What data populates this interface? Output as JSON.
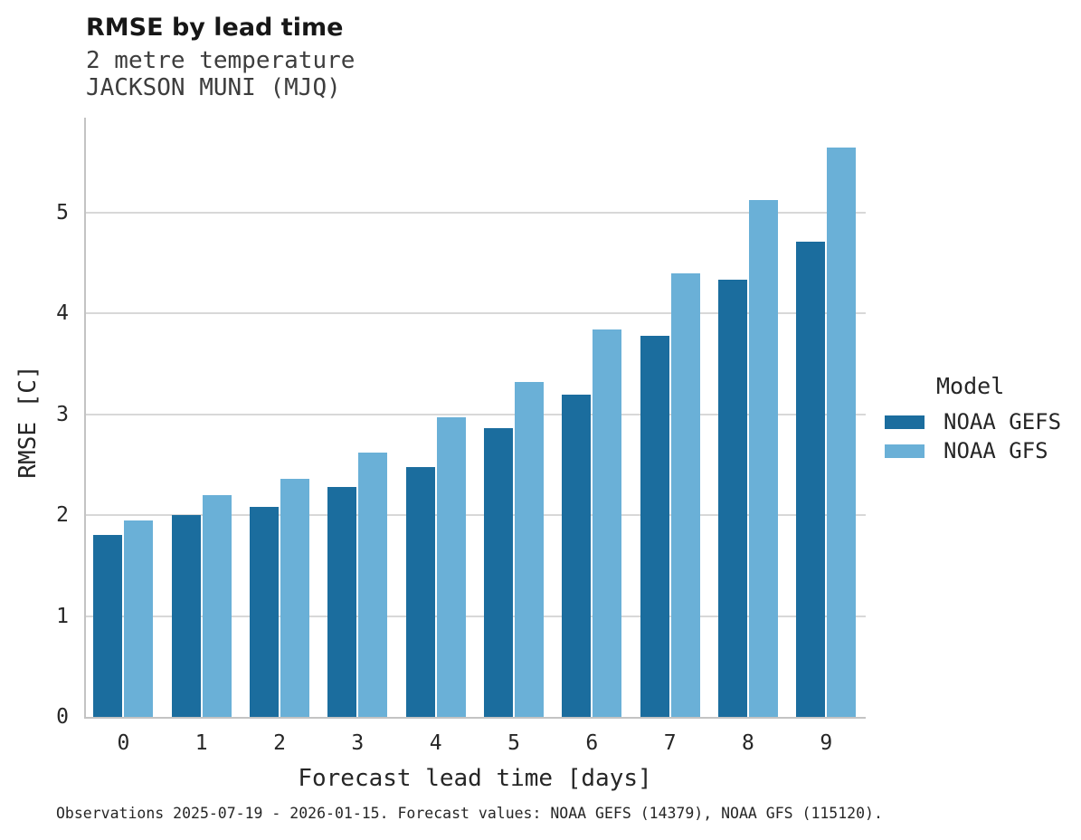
{
  "header": {
    "title": "RMSE by lead time",
    "subtitle_line1": "2 metre temperature",
    "subtitle_line2": "JACKSON MUNI (MJQ)"
  },
  "legend": {
    "title": "Model",
    "entries": [
      "NOAA GEFS",
      "NOAA GFS"
    ]
  },
  "footer": {
    "caption": "Observations 2025-07-19 - 2026-01-15. Forecast values: NOAA GEFS (14379), NOAA GFS (115120)."
  },
  "colors": {
    "gefs_dark_blue": "#1b6d9e",
    "gfs_light_blue": "#6ab0d7",
    "gridline_gray": "#d8d8d8",
    "spine_gray": "#c3c3c3",
    "text_dark": "#262626"
  },
  "chart_data": {
    "type": "bar",
    "title": "RMSE by lead time",
    "subtitle": [
      "2 metre temperature",
      "JACKSON MUNI (MJQ)"
    ],
    "categories": [
      "0",
      "1",
      "2",
      "3",
      "4",
      "5",
      "6",
      "7",
      "8",
      "9"
    ],
    "series": [
      {
        "name": "NOAA GEFS",
        "color": "#1b6d9e",
        "values": [
          1.8,
          2.0,
          2.08,
          2.28,
          2.48,
          2.86,
          3.19,
          3.78,
          4.33,
          4.71
        ]
      },
      {
        "name": "NOAA GFS",
        "color": "#6ab0d7",
        "values": [
          1.95,
          2.2,
          2.36,
          2.62,
          2.97,
          3.32,
          3.84,
          4.4,
          5.12,
          5.64
        ]
      }
    ],
    "xlabel": "Forecast lead time [days]",
    "ylabel": "RMSE [C]",
    "ylim": [
      0,
      5.94
    ],
    "yticks": [
      0,
      1,
      2,
      3,
      4,
      5
    ],
    "grid": "horizontal",
    "legend_title": "Model",
    "legend_position": "right",
    "caption": "Observations 2025-07-19 - 2026-01-15. Forecast values: NOAA GEFS (14379), NOAA GFS (115120)."
  }
}
